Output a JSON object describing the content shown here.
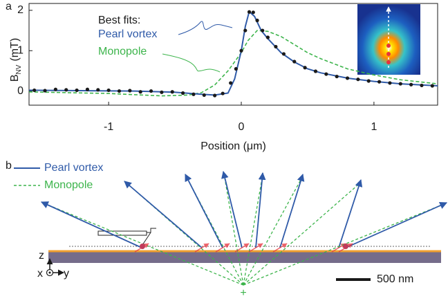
{
  "chart_data": {
    "type": "line",
    "panel_label": "a",
    "legend_title": "Best fits:",
    "ylabel": "B",
    "ylabel_sub": "NV",
    "ylabel_unit": "(mT)",
    "xlabel": "Position (μm)",
    "xlim": [
      -1.6,
      1.48
    ],
    "ylim": [
      -0.35,
      2.17
    ],
    "xticks": [
      -1,
      0,
      1
    ],
    "yticks": [
      0,
      1,
      2
    ],
    "series": [
      {
        "style": "points",
        "color": "#1a1a1a",
        "x": [
          -1.56,
          -1.48,
          -1.4,
          -1.32,
          -1.24,
          -1.16,
          -1.08,
          -1.0,
          -0.92,
          -0.84,
          -0.76,
          -0.68,
          -0.6,
          -0.52,
          -0.44,
          -0.36,
          -0.28,
          -0.2,
          -0.14,
          -0.08,
          -0.04,
          0,
          0.03,
          0.06,
          0.09,
          0.12,
          0.16,
          0.2,
          0.26,
          0.32,
          0.4,
          0.48,
          0.56,
          0.64,
          0.72,
          0.8,
          0.88,
          0.96,
          1.04,
          1.12,
          1.2,
          1.28,
          1.36,
          1.44
        ],
        "values": [
          0.02,
          0.01,
          0.04,
          0.03,
          0.02,
          0.04,
          0.03,
          0.02,
          0.0,
          0.01,
          -0.02,
          0.0,
          -0.03,
          -0.02,
          -0.05,
          -0.08,
          -0.1,
          -0.11,
          -0.06,
          0.2,
          0.55,
          1.0,
          1.5,
          1.96,
          1.95,
          1.75,
          1.5,
          1.33,
          1.1,
          0.92,
          0.73,
          0.58,
          0.49,
          0.42,
          0.36,
          0.32,
          0.29,
          0.25,
          0.23,
          0.2,
          0.18,
          0.16,
          0.14,
          0.13
        ]
      },
      {
        "name": "Pearl vortex",
        "style": "solid",
        "color": "#2f5aa8",
        "x": [
          -1.6,
          -1.2,
          -0.8,
          -0.5,
          -0.3,
          -0.2,
          -0.1,
          -0.05,
          0,
          0.03,
          0.06,
          0.1,
          0.15,
          0.2,
          0.3,
          0.4,
          0.5,
          0.6,
          0.8,
          1.0,
          1.2,
          1.48
        ],
        "values": [
          0.02,
          0.01,
          0,
          -0.03,
          -0.08,
          -0.1,
          -0.05,
          0.3,
          1.0,
          1.6,
          1.97,
          1.85,
          1.5,
          1.3,
          0.95,
          0.72,
          0.55,
          0.45,
          0.32,
          0.24,
          0.18,
          0.13
        ]
      },
      {
        "name": "Monopole",
        "style": "dashed",
        "color": "#3cb44b",
        "x": [
          -1.6,
          -1.0,
          -0.6,
          -0.4,
          -0.3,
          -0.2,
          -0.1,
          0,
          0.05,
          0.12,
          0.2,
          0.3,
          0.4,
          0.5,
          0.6,
          0.8,
          1.0,
          1.2,
          1.48
        ],
        "values": [
          -0.02,
          -0.06,
          -0.12,
          -0.1,
          -0.04,
          0.15,
          0.5,
          0.95,
          1.25,
          1.5,
          1.48,
          1.35,
          1.15,
          0.95,
          0.8,
          0.55,
          0.4,
          0.28,
          0.18
        ]
      }
    ]
  },
  "diagram": {
    "panel_label": "b",
    "legend": [
      "Pearl vortex",
      "Monopole"
    ],
    "axis_z": "z",
    "axis_x": "x",
    "axis_y": "y",
    "scale_bar": "500 nm",
    "source_marker": "+"
  }
}
